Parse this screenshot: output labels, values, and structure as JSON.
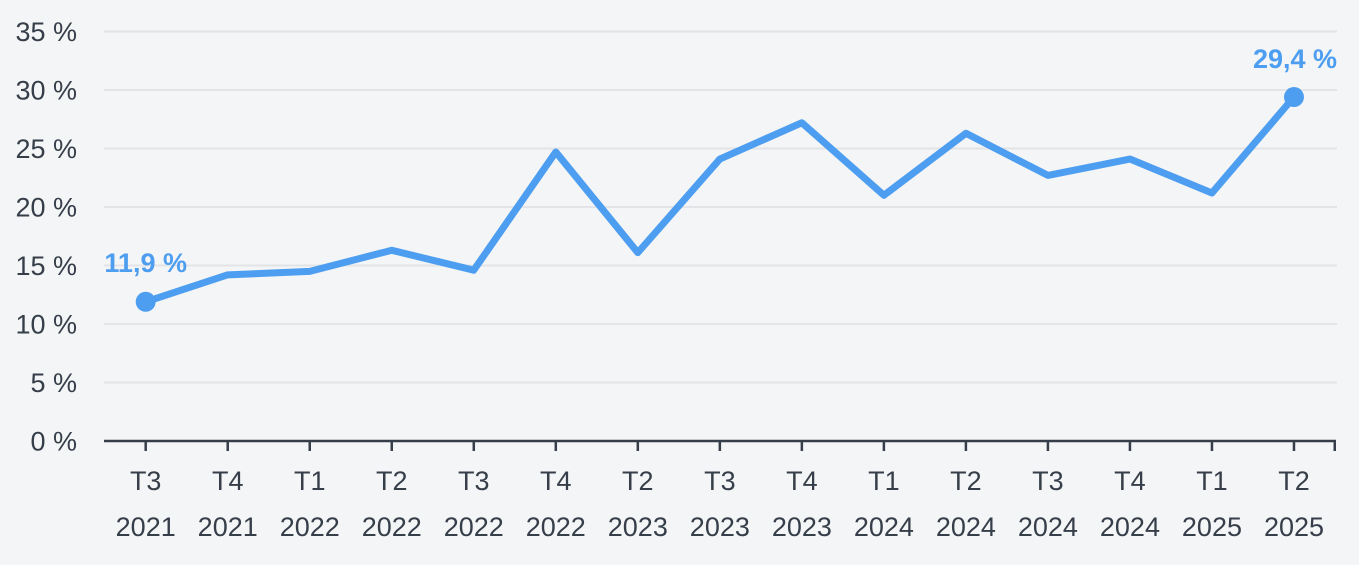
{
  "colors": {
    "background": "#f4f5f6",
    "accent_blue": "#4d9ef0",
    "grid_line": "#e2e4e7",
    "axis_line": "#353e49",
    "tick_text": "#353e49"
  },
  "chart_data": {
    "type": "line",
    "title": "",
    "xlabel": "",
    "ylabel": "",
    "legend": "none",
    "grid": "horizontal",
    "ylim": [
      0,
      35
    ],
    "y_tick_values": [
      0,
      5,
      10,
      15,
      20,
      25,
      30,
      35
    ],
    "y_tick_labels": [
      "0 %",
      "5 %",
      "10 %",
      "15 %",
      "20 %",
      "25 %",
      "30 %",
      "35 %"
    ],
    "categories": [
      "T3 2021",
      "T4 2021",
      "T1 2022",
      "T2 2022",
      "T3 2022",
      "T4 2022",
      "T2 2023",
      "T3 2023",
      "T4 2023",
      "T1 2024",
      "T2 2024",
      "T3 2024",
      "T4 2024",
      "T1 2025",
      "T2 2025"
    ],
    "x_tick_labels": [
      {
        "quarter": "T3",
        "year": "2021"
      },
      {
        "quarter": "T4",
        "year": "2021"
      },
      {
        "quarter": "T1",
        "year": "2022"
      },
      {
        "quarter": "T2",
        "year": "2022"
      },
      {
        "quarter": "T3",
        "year": "2022"
      },
      {
        "quarter": "T4",
        "year": "2022"
      },
      {
        "quarter": "T2",
        "year": "2023"
      },
      {
        "quarter": "T3",
        "year": "2023"
      },
      {
        "quarter": "T4",
        "year": "2023"
      },
      {
        "quarter": "T1",
        "year": "2024"
      },
      {
        "quarter": "T2",
        "year": "2024"
      },
      {
        "quarter": "T3",
        "year": "2024"
      },
      {
        "quarter": "T4",
        "year": "2024"
      },
      {
        "quarter": "T1",
        "year": "2025"
      },
      {
        "quarter": "T2",
        "year": "2025"
      }
    ],
    "series": [
      {
        "name": "line-series",
        "values": [
          11.9,
          14.2,
          14.5,
          16.3,
          14.6,
          24.7,
          16.1,
          24.1,
          27.2,
          21.0,
          26.3,
          22.7,
          24.1,
          21.2,
          29.4
        ]
      }
    ],
    "endpoint_labels": {
      "first": "11,9 %",
      "last": "29,4 %"
    }
  }
}
